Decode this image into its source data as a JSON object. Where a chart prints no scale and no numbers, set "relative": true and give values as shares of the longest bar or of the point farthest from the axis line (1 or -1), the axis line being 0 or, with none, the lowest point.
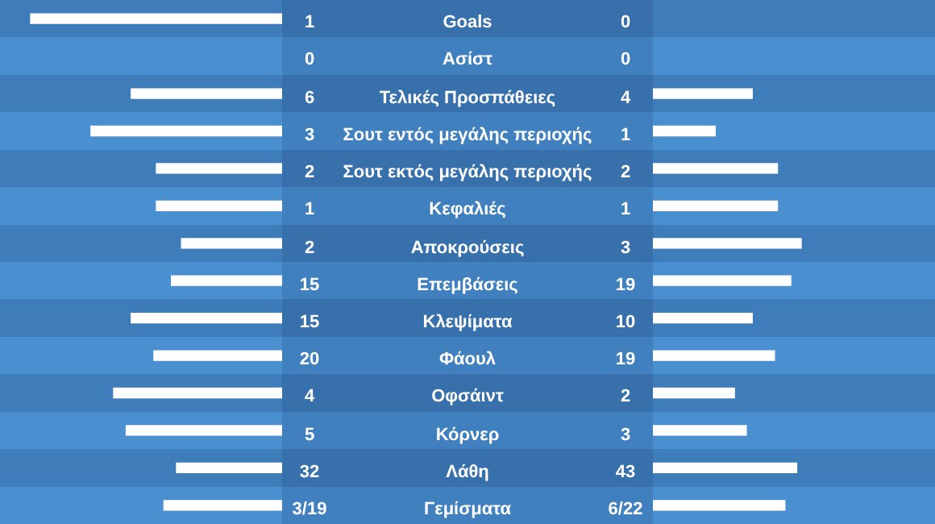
{
  "chart_data": [
    {
      "type": "bar",
      "orientation": "horizontal",
      "relative": true,
      "categories": [
        "Goals",
        "Ασίστ",
        "Τελικές Προσπάθειες",
        "Σουτ εντός μεγάλης περιοχής",
        "Σουτ εκτός μεγάλης περιοχής",
        "Κεφαλιές",
        "Αποκρούσεις",
        "Επεμβάσεις",
        "Κλεψίματα",
        "Φάουλ",
        "Οφσάιντ",
        "Κόρνερ",
        "Λάθη",
        "Γεμίσματα"
      ],
      "series": [
        {
          "color": "#ffffff",
          "values": [
            1,
            0,
            0.6,
            0.76,
            0.5,
            0.5,
            0.4,
            0.44,
            0.6,
            0.51,
            0.67,
            0.62,
            0.42,
            0.47
          ]
        }
      ],
      "annotations": [
        "1",
        "0",
        "6",
        "3",
        "2",
        "1",
        "2",
        "15",
        "15",
        "20",
        "4",
        "5",
        "32",
        "3/19"
      ]
    },
    {
      "type": "bar",
      "orientation": "horizontal",
      "relative": true,
      "categories": [
        null,
        null,
        null,
        null,
        null,
        null,
        null,
        null,
        null,
        null,
        null,
        null,
        null,
        null
      ],
      "series": [
        {
          "color": "#ffffff",
          "values": [
            0,
            0,
            0.67,
            0.42,
            0.84,
            0.84,
            1,
            0.93,
            0.67,
            0.82,
            0.55,
            0.63,
            0.97,
            0.89
          ]
        }
      ],
      "annotations": [
        "0",
        "0",
        "4",
        "1",
        "2",
        "1",
        "3",
        "19",
        "10",
        "19",
        "2",
        "3",
        "43",
        "6/22"
      ]
    }
  ]
}
